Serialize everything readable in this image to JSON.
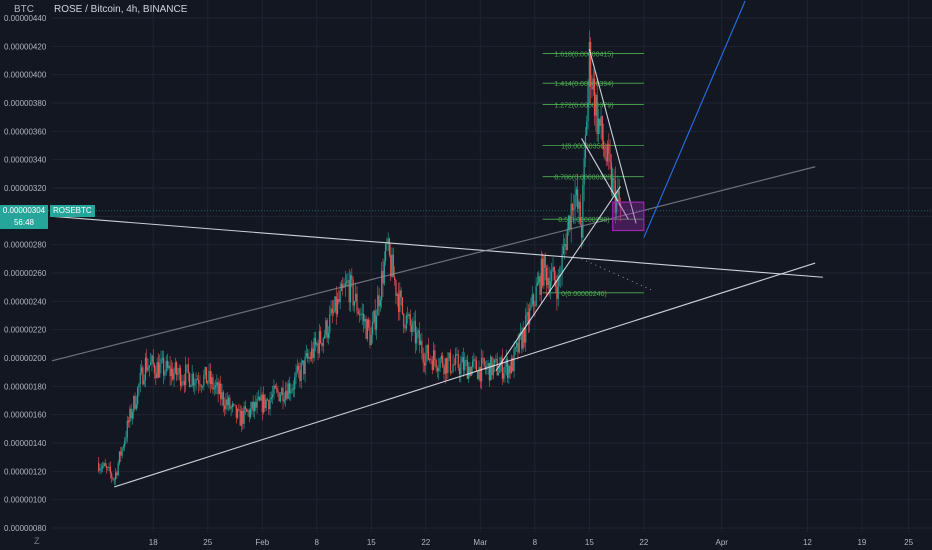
{
  "header": {
    "axis_currency": "BTC",
    "title": "ROSE / Bitcoin, 4h, BINANCE"
  },
  "price_tag": {
    "value": "0.00000304",
    "countdown": "56:48",
    "symbol": "ROSEBTC"
  },
  "colors": {
    "background": "#131722",
    "grid": "#1f2433",
    "up": "#26a69a",
    "down": "#ef5350",
    "fib": "#4caf50",
    "trend_white": "#e0e3eb",
    "trend_gray": "#8a8d96",
    "projection_blue": "#2979ff",
    "box": "#9c27b0"
  },
  "chart_data": {
    "type": "candlestick",
    "title": "ROSE / Bitcoin, 4h, BINANCE",
    "y_unit": "BTC",
    "ylim": [
      8e-07,
      4.4e-06
    ],
    "y_ticks": [
      "0.00000080",
      "0.00000100",
      "0.00000120",
      "0.00000140",
      "0.00000160",
      "0.00000180",
      "0.00000200",
      "0.00000220",
      "0.00000240",
      "0.00000260",
      "0.00000280",
      "0.00000300",
      "0.00000320",
      "0.00000340",
      "0.00000360",
      "0.00000380",
      "0.00000400",
      "0.00000420",
      "0.00000440"
    ],
    "x_ticks": [
      "18",
      "25",
      "Feb",
      "8",
      "15",
      "22",
      "Mar",
      "8",
      "15",
      "22",
      "Apr",
      "12",
      "19",
      "25"
    ],
    "grid": true,
    "last_price": 3.04e-06,
    "price_path": [
      {
        "date": "2021-01-11",
        "value": 1.26e-06
      },
      {
        "date": "2021-01-13",
        "value": 1.15e-06
      },
      {
        "date": "2021-01-15",
        "value": 1.58e-06
      },
      {
        "date": "2021-01-17",
        "value": 1.96e-06
      },
      {
        "date": "2021-01-21",
        "value": 1.89e-06
      },
      {
        "date": "2021-01-25",
        "value": 1.85e-06
      },
      {
        "date": "2021-01-29",
        "value": 1.57e-06
      },
      {
        "date": "2021-02-01",
        "value": 1.68e-06
      },
      {
        "date": "2021-02-05",
        "value": 1.82e-06
      },
      {
        "date": "2021-02-09",
        "value": 2.18e-06
      },
      {
        "date": "2021-02-12",
        "value": 2.52e-06
      },
      {
        "date": "2021-02-15",
        "value": 2.14e-06
      },
      {
        "date": "2021-02-17",
        "value": 2.76e-06
      },
      {
        "date": "2021-02-19",
        "value": 2.32e-06
      },
      {
        "date": "2021-02-22",
        "value": 2.02e-06
      },
      {
        "date": "2021-02-25",
        "value": 1.96e-06
      },
      {
        "date": "2021-03-01",
        "value": 1.92e-06
      },
      {
        "date": "2021-03-05",
        "value": 1.94e-06
      },
      {
        "date": "2021-03-07",
        "value": 2.24e-06
      },
      {
        "date": "2021-03-09",
        "value": 2.62e-06
      },
      {
        "date": "2021-03-11",
        "value": 2.52e-06
      },
      {
        "date": "2021-03-13",
        "value": 3.18e-06
      },
      {
        "date": "2021-03-14",
        "value": 2.92e-06
      },
      {
        "date": "2021-03-15",
        "value": 4.12e-06
      },
      {
        "date": "2021-03-16",
        "value": 3.7e-06
      },
      {
        "date": "2021-03-17",
        "value": 3.45e-06
      },
      {
        "date": "2021-03-18",
        "value": 3.2e-06
      },
      {
        "date": "2021-03-19",
        "value": 3.04e-06
      }
    ],
    "fib_levels": [
      {
        "label": "1.618(0.00000415)",
        "value": 4.15e-06
      },
      {
        "label": "1.414(0.00000394)",
        "value": 3.94e-06
      },
      {
        "label": "1.272(0.00000379)",
        "value": 3.79e-06
      },
      {
        "label": "1(0.00000350)",
        "value": 3.5e-06
      },
      {
        "label": "0.786(0.00000328)",
        "value": 3.28e-06
      },
      {
        "label": "0.5(0.00000298)",
        "value": 2.98e-06
      },
      {
        "label": "0(0.00000246)",
        "value": 2.46e-06
      }
    ],
    "fib_range": {
      "start_date": "2021-03-09",
      "end_date": "2021-03-22"
    },
    "trendlines": [
      {
        "name": "support",
        "style": "white",
        "points": [
          {
            "date": "2021-01-13",
            "value": 1.09e-06
          },
          {
            "date": "2021-04-13",
            "value": 2.67e-06
          }
        ]
      },
      {
        "name": "resistance",
        "style": "white",
        "points": [
          {
            "date": "2021-01-05",
            "value": 3e-06
          },
          {
            "date": "2021-04-14",
            "value": 2.57e-06
          }
        ]
      },
      {
        "name": "channel",
        "style": "gray",
        "points": [
          {
            "date": "2021-01-05",
            "value": 1.98e-06
          },
          {
            "date": "2021-04-13",
            "value": 3.35e-06
          }
        ]
      },
      {
        "name": "breakout",
        "style": "white",
        "points": [
          {
            "date": "2021-03-03",
            "value": 1.91e-06
          },
          {
            "date": "2021-03-19",
            "value": 3.21e-06
          }
        ]
      },
      {
        "name": "wedge-top",
        "style": "white",
        "points": [
          {
            "date": "2021-03-15",
            "value": 4.18e-06
          },
          {
            "date": "2021-03-21",
            "value": 2.95e-06
          }
        ]
      },
      {
        "name": "wedge-bottom",
        "style": "white",
        "points": [
          {
            "date": "2021-03-14",
            "value": 3.55e-06
          },
          {
            "date": "2021-03-20",
            "value": 2.98e-06
          }
        ]
      },
      {
        "name": "projection",
        "style": "blue",
        "points": [
          {
            "date": "2021-03-22",
            "value": 2.85e-06
          },
          {
            "date": "2021-04-04",
            "value": 4.52e-06
          }
        ]
      }
    ],
    "box": {
      "start_date": "2021-03-18",
      "end_date": "2021-03-22",
      "low": 2.9e-06,
      "high": 3.1e-06
    },
    "dotted_projection": [
      {
        "date": "2021-03-14",
        "value": 2.7e-06
      },
      {
        "date": "2021-03-23",
        "value": 2.48e-06
      }
    ]
  }
}
